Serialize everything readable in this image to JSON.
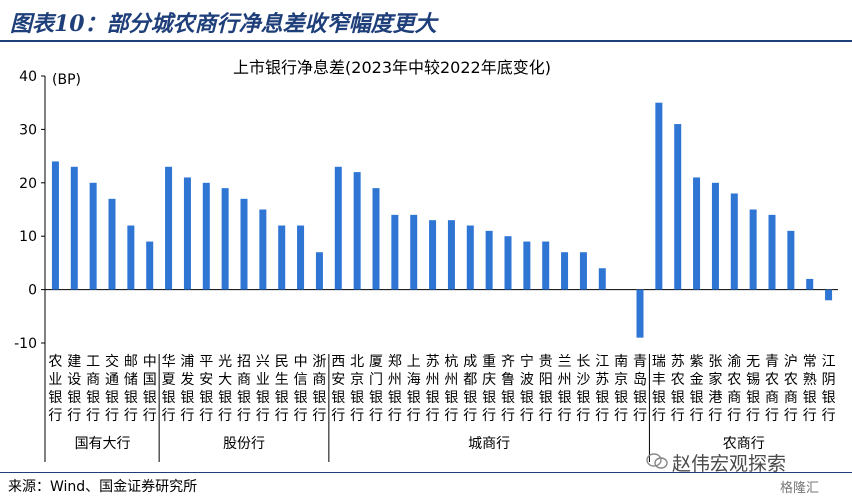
{
  "figure_title": "图表10：部分城农商行净息差收窄幅度更大",
  "source": "来源：Wind、国金证券研究所",
  "watermark": "赵伟宏观探索",
  "brand": "格隆汇",
  "colors": {
    "bar": "#2e75d4",
    "title": "#1f3f7a"
  },
  "chart_data": {
    "type": "bar",
    "title": "上市银行净息差(2023年中较2022年底变化)",
    "unit_label": "(BP)",
    "ylim": [
      -10,
      40
    ],
    "yticks": [
      -10,
      0,
      10,
      20,
      30,
      40
    ],
    "grid": false,
    "categories": [
      "农业银行",
      "建设银行",
      "工商银行",
      "交通银行",
      "邮储银行",
      "中国银行",
      "华夏银行",
      "浦发银行",
      "平安银行",
      "光大银行",
      "招商银行",
      "兴业银行",
      "民生银行",
      "中信银行",
      "浙商银行",
      "西安银行",
      "北京银行",
      "厦门银行",
      "郑州银行",
      "上海银行",
      "苏州银行",
      "杭州银行",
      "成都银行",
      "重庆银行",
      "齐鲁银行",
      "宁波银行",
      "贵阳银行",
      "兰州银行",
      "长沙银行",
      "江苏银行",
      "南京银行",
      "青岛银行",
      "瑞丰银行",
      "苏农银行",
      "紫金银行",
      "张家港行",
      "渝农商行",
      "无锡银行",
      "青农商行",
      "沪农商行",
      "常熟银行",
      "江阴银行"
    ],
    "values": [
      24,
      23,
      20,
      17,
      12,
      9,
      23,
      21,
      20,
      19,
      17,
      15,
      12,
      12,
      7,
      23,
      22,
      19,
      14,
      14,
      13,
      13,
      12,
      11,
      10,
      9,
      9,
      7,
      7,
      4,
      0,
      -9,
      35,
      31,
      21,
      20,
      18,
      15,
      14,
      11,
      2,
      -2
    ],
    "groups": [
      {
        "name": "国有大行",
        "count": 6
      },
      {
        "name": "股份行",
        "count": 9
      },
      {
        "name": "城商行",
        "count": 17
      },
      {
        "name": "农商行",
        "count": 10
      }
    ]
  }
}
